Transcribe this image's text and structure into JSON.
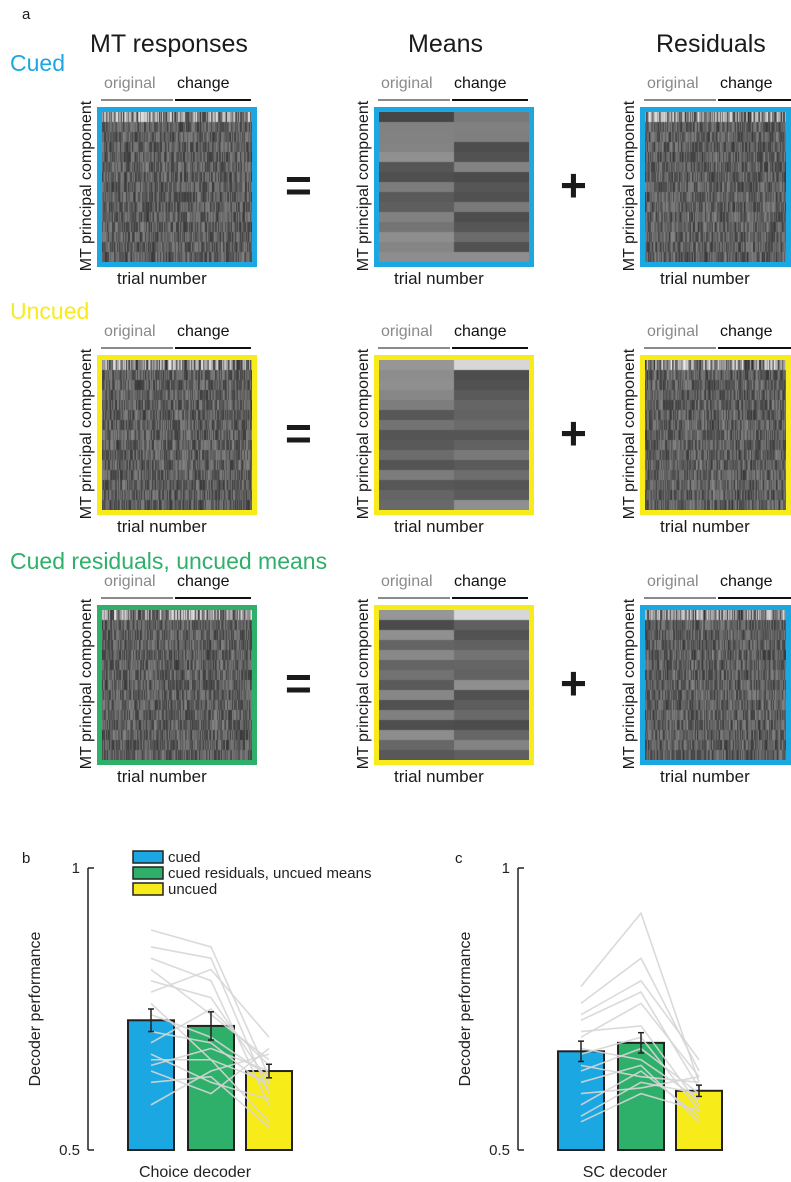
{
  "figure": {
    "panel_a": {
      "letter": "a",
      "column_titles": [
        "MT responses",
        "Means",
        "Residuals"
      ],
      "header_original": "original",
      "header_change": "change",
      "xlabel": "trial number",
      "ylabel": "MT principal component",
      "equals": "=",
      "plus": "+",
      "colors": {
        "cued": "#1ba7e1",
        "uncued": "#f7ec1a",
        "mixed": "#2eb06a",
        "muted_text": "#8a8a8a"
      },
      "rows": [
        {
          "label": "Cued",
          "label_color": "#1ba7e1",
          "box_colors": [
            "#1ba7e1",
            "#1ba7e1",
            "#1ba7e1"
          ]
        },
        {
          "label": "Uncued",
          "label_color": "#f7ec1a",
          "box_colors": [
            "#f7ec1a",
            "#f7ec1a",
            "#f7ec1a"
          ]
        },
        {
          "label": "Cued residuals, uncued means",
          "label_color": "#2eb06a",
          "box_colors": [
            "#2eb06a",
            "#f7ec1a",
            "#1ba7e1"
          ]
        }
      ]
    },
    "panel_b": {
      "letter": "b"
    },
    "panel_c": {
      "letter": "c"
    }
  },
  "chart_data": [
    {
      "type": "bar",
      "title": "",
      "xlabel": "Choice decoder",
      "ylabel": "Decoder performance",
      "ylim": [
        0.5,
        1
      ],
      "yticks": [
        "1",
        "0.5"
      ],
      "legend_position": "top",
      "categories": [
        "cued",
        "cued residuals, uncued means",
        "uncued"
      ],
      "colors": [
        "#1ba7e1",
        "#2eb06a",
        "#f7ec1a"
      ],
      "values": [
        0.73,
        0.72,
        0.64
      ],
      "errors": [
        0.02,
        0.025,
        0.012
      ],
      "individual_lines": [
        [
          0.89,
          0.86,
          0.63
        ],
        [
          0.86,
          0.84,
          0.6
        ],
        [
          0.84,
          0.8,
          0.58
        ],
        [
          0.82,
          0.74,
          0.66
        ],
        [
          0.8,
          0.77,
          0.62
        ],
        [
          0.78,
          0.82,
          0.7
        ],
        [
          0.76,
          0.66,
          0.55
        ],
        [
          0.74,
          0.7,
          0.63
        ],
        [
          0.71,
          0.69,
          0.61
        ],
        [
          0.69,
          0.75,
          0.65
        ],
        [
          0.67,
          0.62,
          0.59
        ],
        [
          0.66,
          0.66,
          0.62
        ],
        [
          0.65,
          0.68,
          0.64
        ],
        [
          0.64,
          0.6,
          0.68
        ],
        [
          0.62,
          0.63,
          0.54
        ],
        [
          0.58,
          0.64,
          0.67
        ]
      ]
    },
    {
      "type": "bar",
      "title": "",
      "xlabel": "SC decoder",
      "ylabel": "Decoder performance",
      "ylim": [
        0.5,
        1
      ],
      "yticks": [
        "1",
        "0.5"
      ],
      "categories": [
        "cued",
        "cued residuals, uncued means",
        "uncued"
      ],
      "colors": [
        "#1ba7e1",
        "#2eb06a",
        "#f7ec1a"
      ],
      "values": [
        0.675,
        0.69,
        0.605
      ],
      "errors": [
        0.018,
        0.018,
        0.01
      ],
      "individual_lines": [
        [
          0.79,
          0.92,
          0.62
        ],
        [
          0.76,
          0.84,
          0.64
        ],
        [
          0.74,
          0.8,
          0.66
        ],
        [
          0.73,
          0.78,
          0.61
        ],
        [
          0.71,
          0.72,
          0.58
        ],
        [
          0.7,
          0.76,
          0.63
        ],
        [
          0.68,
          0.66,
          0.59
        ],
        [
          0.67,
          0.7,
          0.57
        ],
        [
          0.65,
          0.63,
          0.62
        ],
        [
          0.64,
          0.68,
          0.6
        ],
        [
          0.62,
          0.65,
          0.55
        ],
        [
          0.6,
          0.61,
          0.63
        ],
        [
          0.58,
          0.64,
          0.56
        ],
        [
          0.56,
          0.62,
          0.6
        ],
        [
          0.55,
          0.6,
          0.57
        ]
      ]
    }
  ]
}
